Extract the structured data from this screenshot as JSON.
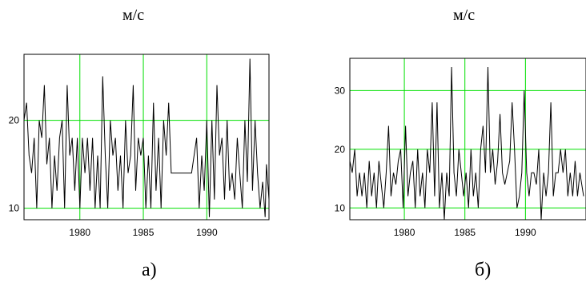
{
  "chart_data": [
    {
      "type": "line",
      "unit_label": "м/с",
      "caption": "а)",
      "xlim": [
        1975.6,
        1994.9
      ],
      "ylim": [
        8.7,
        27.5
      ],
      "x_ticks": [
        1980,
        1985,
        1990
      ],
      "y_ticks": [
        10,
        20
      ],
      "grid": true,
      "grid_color": "#00e000",
      "line_color": "#000000",
      "x_tick_labels": [
        "1980",
        "1985",
        "1990"
      ],
      "y_tick_labels": [
        "10",
        "20"
      ],
      "series": [
        {
          "values": [
            [
              1975.6,
              20
            ],
            [
              1975.8,
              22
            ],
            [
              1976.0,
              16
            ],
            [
              1976.2,
              14
            ],
            [
              1976.4,
              18
            ],
            [
              1976.6,
              10
            ],
            [
              1976.8,
              20
            ],
            [
              1977.0,
              18
            ],
            [
              1977.2,
              24
            ],
            [
              1977.4,
              15
            ],
            [
              1977.6,
              18
            ],
            [
              1977.8,
              10
            ],
            [
              1978.0,
              16
            ],
            [
              1978.2,
              12
            ],
            [
              1978.4,
              18
            ],
            [
              1978.6,
              20
            ],
            [
              1978.8,
              10
            ],
            [
              1979.0,
              24
            ],
            [
              1979.2,
              16
            ],
            [
              1979.4,
              18
            ],
            [
              1979.6,
              12
            ],
            [
              1979.8,
              18
            ],
            [
              1980.0,
              10
            ],
            [
              1980.2,
              18
            ],
            [
              1980.4,
              14
            ],
            [
              1980.6,
              18
            ],
            [
              1980.8,
              12
            ],
            [
              1981.0,
              18
            ],
            [
              1981.2,
              10
            ],
            [
              1981.4,
              16
            ],
            [
              1981.6,
              10
            ],
            [
              1981.8,
              25
            ],
            [
              1982.0,
              16
            ],
            [
              1982.2,
              10
            ],
            [
              1982.4,
              20
            ],
            [
              1982.6,
              16
            ],
            [
              1982.8,
              18
            ],
            [
              1983.0,
              12
            ],
            [
              1983.2,
              16
            ],
            [
              1983.4,
              10
            ],
            [
              1983.6,
              20
            ],
            [
              1983.8,
              14
            ],
            [
              1984.0,
              16
            ],
            [
              1984.2,
              24
            ],
            [
              1984.4,
              12
            ],
            [
              1984.6,
              18
            ],
            [
              1984.8,
              16
            ],
            [
              1985.0,
              18
            ],
            [
              1985.2,
              10
            ],
            [
              1985.4,
              16
            ],
            [
              1985.6,
              10
            ],
            [
              1985.8,
              22
            ],
            [
              1986.0,
              12
            ],
            [
              1986.2,
              18
            ],
            [
              1986.4,
              10
            ],
            [
              1986.6,
              20
            ],
            [
              1986.8,
              16
            ],
            [
              1987.0,
              22
            ],
            [
              1987.2,
              14
            ],
            [
              1987.6,
              14
            ],
            [
              1988.0,
              14
            ],
            [
              1988.4,
              14
            ],
            [
              1988.8,
              14
            ],
            [
              1989.2,
              18
            ],
            [
              1989.4,
              10
            ],
            [
              1989.6,
              16
            ],
            [
              1989.8,
              12
            ],
            [
              1990.0,
              20
            ],
            [
              1990.2,
              9
            ],
            [
              1990.4,
              20
            ],
            [
              1990.6,
              11
            ],
            [
              1990.8,
              24
            ],
            [
              1991.0,
              16
            ],
            [
              1991.2,
              18
            ],
            [
              1991.4,
              11
            ],
            [
              1991.6,
              20
            ],
            [
              1991.8,
              12
            ],
            [
              1992.0,
              14
            ],
            [
              1992.2,
              11
            ],
            [
              1992.4,
              18
            ],
            [
              1992.6,
              14
            ],
            [
              1992.8,
              10
            ],
            [
              1993.0,
              20
            ],
            [
              1993.2,
              13
            ],
            [
              1993.4,
              27
            ],
            [
              1993.6,
              12
            ],
            [
              1993.8,
              20
            ],
            [
              1994.0,
              14
            ],
            [
              1994.2,
              10
            ],
            [
              1994.4,
              13
            ],
            [
              1994.6,
              9
            ],
            [
              1994.7,
              15
            ],
            [
              1994.9,
              11
            ]
          ]
        }
      ]
    },
    {
      "type": "line",
      "unit_label": "м/с",
      "caption": "б)",
      "xlim": [
        1975.5,
        1995.0
      ],
      "ylim": [
        8.0,
        35.5
      ],
      "x_ticks": [
        1980,
        1985,
        1990
      ],
      "y_ticks": [
        10,
        20,
        30
      ],
      "grid": true,
      "grid_color": "#00e000",
      "line_color": "#000000",
      "x_tick_labels": [
        "1980",
        "1985",
        "1990"
      ],
      "y_tick_labels": [
        "10",
        "20",
        "30"
      ],
      "series": [
        {
          "values": [
            [
              1975.5,
              18
            ],
            [
              1975.7,
              16
            ],
            [
              1975.9,
              20
            ],
            [
              1976.1,
              12
            ],
            [
              1976.3,
              16
            ],
            [
              1976.5,
              12
            ],
            [
              1976.7,
              16
            ],
            [
              1976.9,
              10
            ],
            [
              1977.1,
              18
            ],
            [
              1977.3,
              12
            ],
            [
              1977.5,
              16
            ],
            [
              1977.7,
              10
            ],
            [
              1977.9,
              18
            ],
            [
              1978.1,
              14
            ],
            [
              1978.3,
              10
            ],
            [
              1978.5,
              16
            ],
            [
              1978.7,
              24
            ],
            [
              1978.9,
              12
            ],
            [
              1979.1,
              16
            ],
            [
              1979.3,
              14
            ],
            [
              1979.5,
              18
            ],
            [
              1979.7,
              20
            ],
            [
              1979.9,
              10
            ],
            [
              1980.1,
              24
            ],
            [
              1980.3,
              12
            ],
            [
              1980.5,
              16
            ],
            [
              1980.7,
              18
            ],
            [
              1980.9,
              10
            ],
            [
              1981.1,
              20
            ],
            [
              1981.3,
              12
            ],
            [
              1981.5,
              16
            ],
            [
              1981.7,
              10
            ],
            [
              1981.9,
              20
            ],
            [
              1982.1,
              16
            ],
            [
              1982.3,
              28
            ],
            [
              1982.5,
              12
            ],
            [
              1982.7,
              28
            ],
            [
              1982.9,
              10
            ],
            [
              1983.1,
              16
            ],
            [
              1983.3,
              8
            ],
            [
              1983.5,
              16
            ],
            [
              1983.7,
              12
            ],
            [
              1983.9,
              34
            ],
            [
              1984.1,
              16
            ],
            [
              1984.3,
              12
            ],
            [
              1984.5,
              20
            ],
            [
              1984.7,
              16
            ],
            [
              1984.9,
              12
            ],
            [
              1985.1,
              16
            ],
            [
              1985.3,
              10
            ],
            [
              1985.5,
              20
            ],
            [
              1985.7,
              12
            ],
            [
              1985.9,
              16
            ],
            [
              1986.1,
              10
            ],
            [
              1986.3,
              20
            ],
            [
              1986.5,
              24
            ],
            [
              1986.7,
              16
            ],
            [
              1986.9,
              34
            ],
            [
              1987.1,
              16
            ],
            [
              1987.3,
              20
            ],
            [
              1987.5,
              14
            ],
            [
              1987.7,
              18
            ],
            [
              1987.9,
              26
            ],
            [
              1988.1,
              16
            ],
            [
              1988.3,
              14
            ],
            [
              1988.5,
              16
            ],
            [
              1988.7,
              18
            ],
            [
              1988.9,
              28
            ],
            [
              1989.1,
              20
            ],
            [
              1989.3,
              10
            ],
            [
              1989.5,
              12
            ],
            [
              1989.7,
              16
            ],
            [
              1989.9,
              30
            ],
            [
              1990.1,
              16
            ],
            [
              1990.3,
              12
            ],
            [
              1990.5,
              16
            ],
            [
              1990.7,
              16
            ],
            [
              1990.9,
              14
            ],
            [
              1991.1,
              20
            ],
            [
              1991.3,
              8
            ],
            [
              1991.5,
              16
            ],
            [
              1991.7,
              12
            ],
            [
              1991.9,
              16
            ],
            [
              1992.1,
              28
            ],
            [
              1992.3,
              12
            ],
            [
              1992.5,
              16
            ],
            [
              1992.7,
              16
            ],
            [
              1992.9,
              20
            ],
            [
              1993.1,
              16
            ],
            [
              1993.3,
              20
            ],
            [
              1993.5,
              12
            ],
            [
              1993.7,
              16
            ],
            [
              1993.9,
              12
            ],
            [
              1994.1,
              18
            ],
            [
              1994.3,
              12
            ],
            [
              1994.5,
              16
            ],
            [
              1994.8,
              12
            ]
          ]
        }
      ]
    }
  ]
}
